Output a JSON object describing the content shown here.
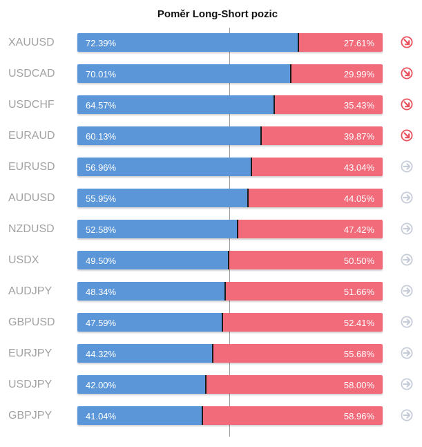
{
  "chart_data": {
    "type": "bar",
    "title": "Poměr Long-Short pozic",
    "categories": [
      "XAUUSD",
      "USDCAD",
      "USDCHF",
      "EURAUD",
      "EURUSD",
      "AUDUSD",
      "NZDUSD",
      "USDX",
      "AUDJPY",
      "GBPUSD",
      "EURJPY",
      "USDJPY",
      "GBPJPY"
    ],
    "series": [
      {
        "values": [
          72.39,
          70.01,
          64.57,
          60.13,
          56.96,
          55.95,
          52.58,
          49.5,
          48.34,
          47.59,
          44.32,
          42.0,
          41.04
        ]
      },
      {
        "values": [
          27.61,
          29.99,
          35.43,
          39.87,
          43.04,
          44.05,
          47.42,
          50.5,
          51.66,
          52.41,
          55.68,
          58.0,
          58.96
        ]
      }
    ],
    "long_labels": [
      "72.39%",
      "70.01%",
      "64.57%",
      "60.13%",
      "56.96%",
      "55.95%",
      "52.58%",
      "49.50%",
      "48.34%",
      "47.59%",
      "44.32%",
      "42.00%",
      "41.04%"
    ],
    "short_labels": [
      "27.61%",
      "29.99%",
      "35.43%",
      "39.87%",
      "43.04%",
      "44.05%",
      "47.42%",
      "50.50%",
      "51.66%",
      "52.41%",
      "55.68%",
      "58.00%",
      "58.96%"
    ],
    "signals": [
      "down-right",
      "down-right",
      "down-right",
      "down-right",
      "right",
      "right",
      "right",
      "right",
      "right",
      "right",
      "right",
      "right",
      "right"
    ],
    "ylim": [
      0,
      100
    ],
    "stacked": true,
    "orientation": "horizontal",
    "grid": false,
    "colors": {
      "long": "#5b96d8",
      "short": "#f16b7a",
      "arrow_active": "#e8505b",
      "arrow_neutral": "#c6ccd8"
    }
  }
}
